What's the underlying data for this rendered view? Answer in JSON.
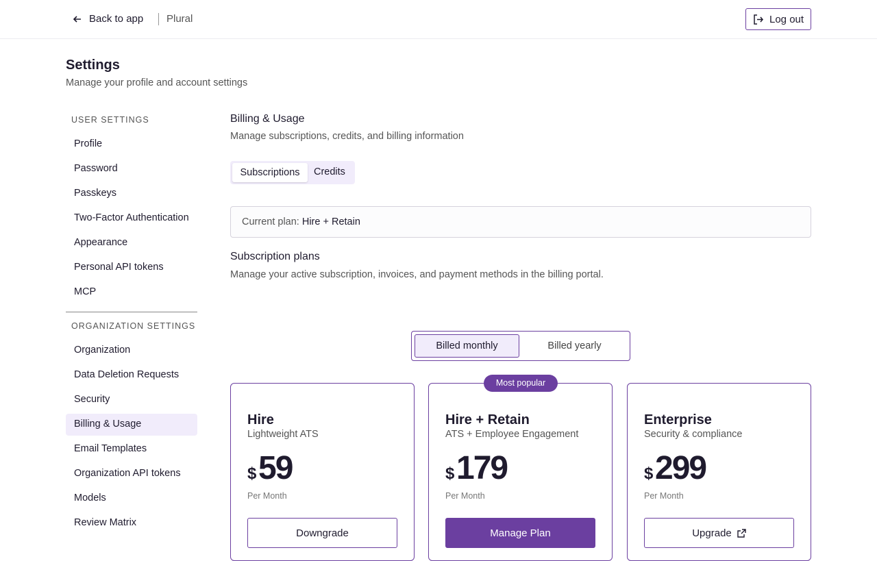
{
  "header": {
    "back": "Back to app",
    "brand": "Plural",
    "logout": "Log out"
  },
  "page": {
    "title": "Settings",
    "subtitle": "Manage your profile and account settings"
  },
  "sidebar": {
    "sections": [
      {
        "heading": "USER SETTINGS",
        "items": [
          "Profile",
          "Password",
          "Passkeys",
          "Two-Factor Authentication",
          "Appearance",
          "Personal API tokens",
          "MCP"
        ]
      },
      {
        "heading": "ORGANIZATION SETTINGS",
        "items": [
          "Organization",
          "Data Deletion Requests",
          "Security",
          "Billing & Usage",
          "Email Templates",
          "Organization API tokens",
          "Models",
          "Review Matrix"
        ]
      }
    ],
    "active": "Billing & Usage"
  },
  "content": {
    "title": "Billing & Usage",
    "description": "Manage subscriptions, credits, and billing information",
    "tabs": [
      "Subscriptions",
      "Credits"
    ],
    "current_plan": {
      "label": "Current plan:",
      "value": "Hire + Retain"
    },
    "plans_heading": "Subscription plans",
    "plans_description": "Manage your active subscription, invoices, and payment methods in the billing portal.",
    "billing_toggle": [
      "Billed monthly",
      "Billed yearly"
    ],
    "plans": [
      {
        "name": "Hire",
        "tagline": "Lightweight ATS",
        "currency": "$",
        "price": "59",
        "period": "Per Month",
        "button": "Downgrade"
      },
      {
        "name": "Hire + Retain",
        "tagline": "ATS + Employee Engagement",
        "currency": "$",
        "price": "179",
        "period": "Per Month",
        "button": "Manage Plan",
        "badge": "Most popular"
      },
      {
        "name": "Enterprise",
        "tagline": "Security & compliance",
        "currency": "$",
        "price": "299",
        "period": "Per Month",
        "button": "Upgrade",
        "external": true
      }
    ]
  }
}
